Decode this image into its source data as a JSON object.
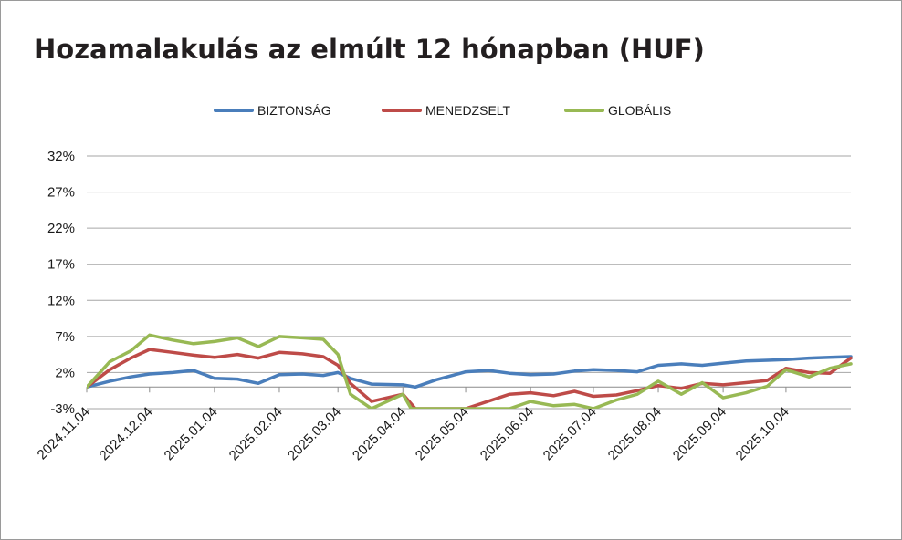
{
  "chart_data": {
    "type": "line",
    "title": "Hozamalakulás az elmúlt 12 hónapban (HUF)",
    "xlabel": "",
    "ylabel": "",
    "y_ticks": [
      "-3%",
      "2%",
      "7%",
      "12%",
      "17%",
      "22%",
      "27%",
      "32%"
    ],
    "ylim": [
      -3,
      35
    ],
    "x_ticks": [
      "2024.11.04",
      "2024.12.04",
      "2025.01.04",
      "2025.02.04",
      "2025.03.04",
      "2025.04.04",
      "2025.05.04",
      "2025.06.04",
      "2025.07.04",
      "2025.08.04",
      "2025.09.04",
      "2025.10.04"
    ],
    "xlim": [
      "2024.11.04",
      "2025.11.04"
    ],
    "grid": true,
    "legend_position": "top",
    "colors": {
      "BIZTONSÁG": "#4a7ebb",
      "MENEDZSELT": "#be4b48",
      "GLOBÁLIS": "#98b954",
      "grid": "#a6a6a6"
    },
    "series": [
      {
        "name": "BIZTONSÁG",
        "points": [
          [
            "2024.11.04",
            0.0
          ],
          [
            "2024.11.15",
            0.8
          ],
          [
            "2024.11.25",
            1.4
          ],
          [
            "2024.12.04",
            1.8
          ],
          [
            "2024.12.15",
            2.0
          ],
          [
            "2024.12.25",
            2.3
          ],
          [
            "2025.01.04",
            1.2
          ],
          [
            "2025.01.15",
            1.1
          ],
          [
            "2025.01.25",
            0.5
          ],
          [
            "2025.02.04",
            1.7
          ],
          [
            "2025.02.15",
            1.8
          ],
          [
            "2025.02.25",
            1.6
          ],
          [
            "2025.03.04",
            2.0
          ],
          [
            "2025.03.10",
            1.2
          ],
          [
            "2025.03.20",
            0.4
          ],
          [
            "2025.04.04",
            0.3
          ],
          [
            "2025.04.10",
            0.0
          ],
          [
            "2025.04.20",
            1.0
          ],
          [
            "2025.05.04",
            2.1
          ],
          [
            "2025.05.15",
            2.3
          ],
          [
            "2025.05.25",
            1.9
          ],
          [
            "2025.06.04",
            1.7
          ],
          [
            "2025.06.15",
            1.8
          ],
          [
            "2025.06.25",
            2.2
          ],
          [
            "2025.07.04",
            2.4
          ],
          [
            "2025.07.15",
            2.3
          ],
          [
            "2025.07.25",
            2.1
          ],
          [
            "2025.08.04",
            3.0
          ],
          [
            "2025.08.15",
            3.2
          ],
          [
            "2025.08.25",
            3.0
          ],
          [
            "2025.09.04",
            3.3
          ],
          [
            "2025.09.15",
            3.6
          ],
          [
            "2025.09.25",
            3.7
          ],
          [
            "2025.10.04",
            3.8
          ],
          [
            "2025.10.15",
            4.0
          ],
          [
            "2025.10.25",
            4.1
          ],
          [
            "2025.11.04",
            4.2
          ]
        ]
      },
      {
        "name": "MENEDZSELT",
        "points": [
          [
            "2024.11.04",
            0.0
          ],
          [
            "2024.11.15",
            2.4
          ],
          [
            "2024.11.25",
            4.0
          ],
          [
            "2024.12.04",
            5.2
          ],
          [
            "2024.12.15",
            4.8
          ],
          [
            "2024.12.25",
            4.4
          ],
          [
            "2025.01.04",
            4.1
          ],
          [
            "2025.01.15",
            4.5
          ],
          [
            "2025.01.25",
            4.0
          ],
          [
            "2025.02.04",
            4.8
          ],
          [
            "2025.02.15",
            4.6
          ],
          [
            "2025.02.25",
            4.2
          ],
          [
            "2025.03.04",
            3.0
          ],
          [
            "2025.03.10",
            0.5
          ],
          [
            "2025.03.20",
            -2.0
          ],
          [
            "2025.04.04",
            -1.0
          ],
          [
            "2025.04.10",
            -3.0
          ],
          [
            "2025.05.04",
            -3.0
          ],
          [
            "2025.05.25",
            -1.0
          ],
          [
            "2025.06.04",
            -0.8
          ],
          [
            "2025.06.15",
            -1.2
          ],
          [
            "2025.06.25",
            -0.6
          ],
          [
            "2025.07.04",
            -1.3
          ],
          [
            "2025.07.15",
            -1.1
          ],
          [
            "2025.07.25",
            -0.5
          ],
          [
            "2025.08.04",
            0.2
          ],
          [
            "2025.08.15",
            -0.2
          ],
          [
            "2025.08.25",
            0.5
          ],
          [
            "2025.09.04",
            0.3
          ],
          [
            "2025.09.15",
            0.6
          ],
          [
            "2025.09.25",
            0.9
          ],
          [
            "2025.10.04",
            2.6
          ],
          [
            "2025.10.15",
            2.0
          ],
          [
            "2025.10.25",
            1.9
          ],
          [
            "2025.11.04",
            4.0
          ]
        ]
      },
      {
        "name": "GLOBÁLIS",
        "points": [
          [
            "2024.11.04",
            0.0
          ],
          [
            "2024.11.15",
            3.5
          ],
          [
            "2024.11.25",
            5.0
          ],
          [
            "2024.12.04",
            7.2
          ],
          [
            "2024.12.15",
            6.5
          ],
          [
            "2024.12.25",
            6.0
          ],
          [
            "2025.01.04",
            6.3
          ],
          [
            "2025.01.15",
            6.8
          ],
          [
            "2025.01.25",
            5.6
          ],
          [
            "2025.02.04",
            7.0
          ],
          [
            "2025.02.15",
            6.8
          ],
          [
            "2025.02.25",
            6.6
          ],
          [
            "2025.03.04",
            4.5
          ],
          [
            "2025.03.10",
            -1.0
          ],
          [
            "2025.03.20",
            -3.0
          ],
          [
            "2025.04.04",
            -1.0
          ],
          [
            "2025.04.08",
            -3.0
          ],
          [
            "2025.05.25",
            -3.0
          ],
          [
            "2025.06.04",
            -2.0
          ],
          [
            "2025.06.15",
            -2.6
          ],
          [
            "2025.06.25",
            -2.4
          ],
          [
            "2025.07.04",
            -3.0
          ],
          [
            "2025.07.15",
            -1.8
          ],
          [
            "2025.07.25",
            -1.0
          ],
          [
            "2025.08.04",
            0.8
          ],
          [
            "2025.08.15",
            -1.0
          ],
          [
            "2025.08.25",
            0.6
          ],
          [
            "2025.09.04",
            -1.5
          ],
          [
            "2025.09.15",
            -0.8
          ],
          [
            "2025.09.25",
            0.1
          ],
          [
            "2025.10.04",
            2.4
          ],
          [
            "2025.10.15",
            1.4
          ],
          [
            "2025.10.25",
            2.6
          ],
          [
            "2025.11.04",
            3.2
          ]
        ]
      }
    ]
  }
}
